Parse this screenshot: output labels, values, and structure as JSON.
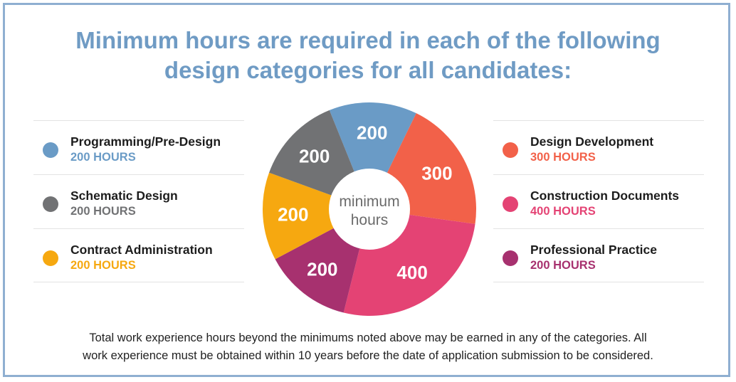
{
  "title": {
    "line1": "Minimum hours are required in each of the following",
    "line2": "design categories for all candidates:"
  },
  "legend_left": [
    {
      "name": "Programming/Pre-Design",
      "hours": "200 HOURS",
      "color": "#6a9bc6"
    },
    {
      "name": "Schematic Design",
      "hours": "200 HOURS",
      "color": "#717274"
    },
    {
      "name": "Contract Administration",
      "hours": "200 HOURS",
      "color": "#f6a810"
    }
  ],
  "legend_right": [
    {
      "name": "Design Development",
      "hours": "300 HOURS",
      "color": "#f26149"
    },
    {
      "name": "Construction Documents",
      "hours": "400 HOURS",
      "color": "#e44374"
    },
    {
      "name": "Professional Practice",
      "hours": "200 HOURS",
      "color": "#a7316f"
    }
  ],
  "chart_data": {
    "type": "pie",
    "center_label": [
      "minimum",
      "hours"
    ],
    "slices": [
      {
        "category": "Programming/Pre-Design",
        "value": 200,
        "label": "200",
        "color": "#6a9bc6"
      },
      {
        "category": "Design Development",
        "value": 300,
        "label": "300",
        "color": "#f26149"
      },
      {
        "category": "Construction Documents",
        "value": 400,
        "label": "400",
        "color": "#e44374"
      },
      {
        "category": "Professional Practice",
        "value": 200,
        "label": "200",
        "color": "#a7316f"
      },
      {
        "category": "Contract Administration",
        "value": 200,
        "label": "200",
        "color": "#f6a810"
      },
      {
        "category": "Schematic Design",
        "value": 200,
        "label": "200",
        "color": "#717274"
      }
    ]
  },
  "footer": {
    "line1": "Total work experience hours beyond the minimums noted above may be earned in any of the categories. All",
    "line2": "work experience must be obtained within 10 years before the date of application submission to be considered."
  }
}
